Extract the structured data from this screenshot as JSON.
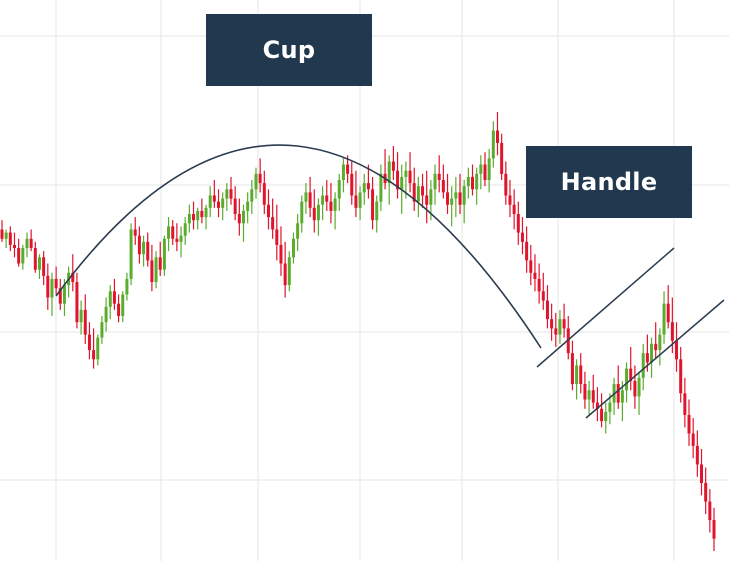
{
  "labels": {
    "cup": "Cup",
    "handle": "Handle"
  },
  "colors": {
    "up": "#5aac2f",
    "down": "#e0142d",
    "grid": "#e6e6e6",
    "line": "#2b3c50",
    "label_bg": "#22384f"
  },
  "chart_data": {
    "type": "candlestick",
    "title": "",
    "xlabel": "",
    "ylabel": "",
    "grid": true,
    "patterns": [
      "cup",
      "handle"
    ],
    "ohlc": [
      [
        100,
        103,
        96,
        97
      ],
      [
        97,
        100,
        94,
        99
      ],
      [
        99,
        101,
        93,
        95
      ],
      [
        95,
        99,
        91,
        94
      ],
      [
        94,
        97,
        88,
        89
      ],
      [
        89,
        95,
        87,
        94
      ],
      [
        94,
        99,
        91,
        97
      ],
      [
        97,
        100,
        93,
        94
      ],
      [
        94,
        96,
        86,
        87
      ],
      [
        87,
        92,
        84,
        91
      ],
      [
        91,
        93,
        82,
        85
      ],
      [
        85,
        89,
        74,
        78
      ],
      [
        78,
        86,
        72,
        84
      ],
      [
        84,
        88,
        79,
        81
      ],
      [
        81,
        84,
        74,
        76
      ],
      [
        76,
        84,
        72,
        82
      ],
      [
        82,
        88,
        78,
        86
      ],
      [
        86,
        92,
        80,
        83
      ],
      [
        83,
        86,
        68,
        70
      ],
      [
        70,
        77,
        66,
        74
      ],
      [
        74,
        79,
        63,
        66
      ],
      [
        66,
        70,
        58,
        61
      ],
      [
        61,
        68,
        55,
        58
      ],
      [
        58,
        66,
        56,
        65
      ],
      [
        65,
        72,
        63,
        70
      ],
      [
        70,
        78,
        67,
        75
      ],
      [
        75,
        82,
        71,
        80
      ],
      [
        80,
        84,
        74,
        76
      ],
      [
        76,
        79,
        70,
        72
      ],
      [
        72,
        80,
        70,
        79
      ],
      [
        79,
        86,
        77,
        84
      ],
      [
        84,
        102,
        82,
        100
      ],
      [
        100,
        104,
        95,
        98
      ],
      [
        98,
        101,
        89,
        92
      ],
      [
        92,
        98,
        88,
        96
      ],
      [
        96,
        99,
        88,
        90
      ],
      [
        90,
        95,
        80,
        83
      ],
      [
        83,
        93,
        81,
        91
      ],
      [
        91,
        96,
        85,
        87
      ],
      [
        87,
        98,
        85,
        97
      ],
      [
        97,
        104,
        93,
        101
      ],
      [
        101,
        103,
        95,
        97
      ],
      [
        97,
        102,
        93,
        96
      ],
      [
        96,
        101,
        91,
        98
      ],
      [
        98,
        104,
        95,
        102
      ],
      [
        102,
        108,
        99,
        105
      ],
      [
        105,
        109,
        100,
        103
      ],
      [
        103,
        107,
        100,
        106
      ],
      [
        106,
        110,
        102,
        104
      ],
      [
        104,
        108,
        100,
        107
      ],
      [
        107,
        114,
        104,
        111
      ],
      [
        111,
        116,
        107,
        109
      ],
      [
        109,
        113,
        104,
        107
      ],
      [
        107,
        112,
        103,
        110
      ],
      [
        110,
        115,
        106,
        113
      ],
      [
        113,
        117,
        108,
        110
      ],
      [
        110,
        114,
        103,
        105
      ],
      [
        105,
        110,
        98,
        102
      ],
      [
        102,
        108,
        96,
        106
      ],
      [
        106,
        112,
        102,
        109
      ],
      [
        109,
        116,
        105,
        113
      ],
      [
        113,
        120,
        110,
        118
      ],
      [
        118,
        123,
        112,
        115
      ],
      [
        115,
        119,
        105,
        108
      ],
      [
        108,
        113,
        100,
        104
      ],
      [
        104,
        110,
        97,
        100
      ],
      [
        100,
        108,
        90,
        95
      ],
      [
        95,
        101,
        85,
        89
      ],
      [
        89,
        96,
        78,
        82
      ],
      [
        82,
        93,
        80,
        91
      ],
      [
        91,
        99,
        89,
        97
      ],
      [
        97,
        105,
        93,
        102
      ],
      [
        102,
        111,
        99,
        109
      ],
      [
        109,
        115,
        105,
        112
      ],
      [
        112,
        117,
        104,
        107
      ],
      [
        107,
        113,
        99,
        103
      ],
      [
        103,
        110,
        98,
        108
      ],
      [
        108,
        114,
        103,
        111
      ],
      [
        111,
        116,
        106,
        109
      ],
      [
        109,
        115,
        102,
        106
      ],
      [
        106,
        112,
        100,
        110
      ],
      [
        110,
        118,
        106,
        116
      ],
      [
        116,
        123,
        112,
        121
      ],
      [
        121,
        124,
        115,
        118
      ],
      [
        118,
        122,
        108,
        111
      ],
      [
        111,
        119,
        104,
        107
      ],
      [
        107,
        114,
        103,
        112
      ],
      [
        112,
        118,
        108,
        115
      ],
      [
        115,
        121,
        110,
        113
      ],
      [
        113,
        117,
        100,
        103
      ],
      [
        103,
        111,
        99,
        109
      ],
      [
        109,
        121,
        106,
        118
      ],
      [
        118,
        126,
        113,
        115
      ],
      [
        115,
        124,
        108,
        122
      ],
      [
        122,
        127,
        116,
        119
      ],
      [
        119,
        125,
        110,
        113
      ],
      [
        113,
        121,
        105,
        117
      ],
      [
        117,
        122,
        110,
        119
      ],
      [
        119,
        125,
        112,
        115
      ],
      [
        115,
        120,
        106,
        109
      ],
      [
        109,
        117,
        104,
        114
      ],
      [
        114,
        118,
        107,
        111
      ],
      [
        111,
        119,
        102,
        108
      ],
      [
        108,
        116,
        103,
        113
      ],
      [
        113,
        121,
        108,
        118
      ],
      [
        118,
        124,
        112,
        116
      ],
      [
        116,
        121,
        110,
        112
      ],
      [
        112,
        118,
        105,
        108
      ],
      [
        108,
        114,
        101,
        110
      ],
      [
        110,
        117,
        104,
        112
      ],
      [
        112,
        118,
        105,
        108
      ],
      [
        108,
        116,
        102,
        114
      ],
      [
        114,
        120,
        110,
        117
      ],
      [
        117,
        121,
        111,
        113
      ],
      [
        113,
        120,
        108,
        118
      ],
      [
        118,
        124,
        113,
        121
      ],
      [
        121,
        125,
        114,
        116
      ],
      [
        116,
        126,
        112,
        123
      ],
      [
        123,
        135,
        120,
        132
      ],
      [
        132,
        138,
        124,
        128
      ],
      [
        128,
        131,
        116,
        118
      ],
      [
        118,
        122,
        108,
        111
      ],
      [
        111,
        116,
        104,
        108
      ],
      [
        108,
        113,
        100,
        105
      ],
      [
        105,
        109,
        95,
        99
      ],
      [
        99,
        104,
        92,
        96
      ],
      [
        96,
        101,
        86,
        90
      ],
      [
        90,
        95,
        82,
        86
      ],
      [
        86,
        92,
        80,
        84
      ],
      [
        84,
        89,
        76,
        80
      ],
      [
        80,
        86,
        74,
        77
      ],
      [
        77,
        82,
        68,
        71
      ],
      [
        71,
        76,
        64,
        68
      ],
      [
        68,
        73,
        62,
        66
      ],
      [
        66,
        74,
        63,
        71
      ],
      [
        71,
        76,
        65,
        68
      ],
      [
        68,
        72,
        58,
        60
      ],
      [
        60,
        64,
        48,
        50
      ],
      [
        50,
        58,
        45,
        56
      ],
      [
        56,
        60,
        47,
        50
      ],
      [
        50,
        54,
        42,
        45
      ],
      [
        45,
        51,
        40,
        48
      ],
      [
        48,
        53,
        42,
        44
      ],
      [
        44,
        49,
        38,
        42
      ],
      [
        42,
        47,
        36,
        38
      ],
      [
        38,
        44,
        34,
        41
      ],
      [
        41,
        47,
        37,
        44
      ],
      [
        44,
        52,
        40,
        50
      ],
      [
        50,
        56,
        42,
        44
      ],
      [
        44,
        51,
        38,
        48
      ],
      [
        48,
        57,
        44,
        55
      ],
      [
        55,
        62,
        48,
        51
      ],
      [
        51,
        56,
        42,
        46
      ],
      [
        46,
        54,
        40,
        52
      ],
      [
        52,
        63,
        48,
        60
      ],
      [
        60,
        66,
        54,
        57
      ],
      [
        57,
        65,
        52,
        63
      ],
      [
        63,
        70,
        58,
        61
      ],
      [
        61,
        68,
        56,
        66
      ],
      [
        66,
        80,
        63,
        76
      ],
      [
        76,
        82,
        68,
        70
      ],
      [
        70,
        78,
        60,
        64
      ],
      [
        64,
        70,
        54,
        58
      ],
      [
        58,
        62,
        44,
        47
      ],
      [
        47,
        52,
        36,
        40
      ],
      [
        40,
        45,
        30,
        34
      ],
      [
        34,
        39,
        26,
        30
      ],
      [
        30,
        35,
        20,
        24
      ],
      [
        24,
        29,
        14,
        18
      ],
      [
        18,
        23,
        8,
        12
      ],
      [
        12,
        16,
        2,
        6
      ],
      [
        6,
        10,
        -4,
        0
      ]
    ]
  }
}
